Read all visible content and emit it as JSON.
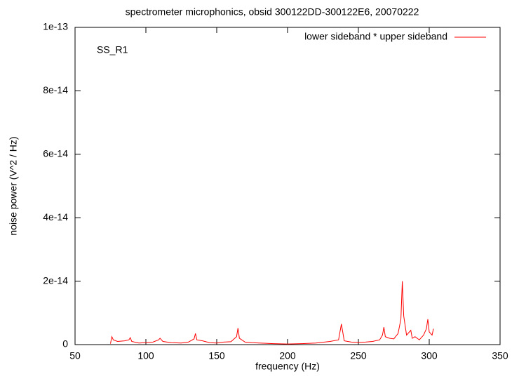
{
  "chart_data": {
    "type": "line",
    "title": "spectrometer microphonics, obsid 300122DD-300122E6, 20070222",
    "x_label": "frequency (Hz)",
    "y_label": "noise power (V^2 / Hz)",
    "annotation": "SS_R1",
    "legend": "top-right",
    "x": [
      75,
      76,
      77,
      80,
      85,
      88,
      89,
      90,
      95,
      100,
      105,
      109,
      110,
      112,
      118,
      125,
      130,
      134,
      135,
      136,
      140,
      145,
      150,
      155,
      160,
      164,
      165,
      166,
      170,
      175,
      180,
      190,
      200,
      210,
      220,
      230,
      236,
      238,
      240,
      245,
      250,
      255,
      260,
      265,
      267,
      268,
      269,
      272,
      275,
      278,
      280,
      281,
      282,
      284,
      287,
      288,
      290,
      293,
      296,
      298,
      299,
      300,
      302,
      303
    ],
    "series": [
      {
        "name": "lower sideband * upper sideband",
        "color": "#ff0000",
        "values": [
          3e-16,
          2.5e-15,
          1.5e-15,
          1e-15,
          1.2e-15,
          1.5e-15,
          2.2e-15,
          1e-15,
          5e-16,
          6e-16,
          8e-16,
          1.5e-15,
          2e-15,
          1e-15,
          6e-16,
          5e-16,
          8e-16,
          1.8e-15,
          3.5e-15,
          1.5e-15,
          1.2e-15,
          6e-16,
          5e-16,
          8e-16,
          9e-16,
          2.5e-15,
          5.2e-15,
          2e-15,
          8e-16,
          6e-16,
          5e-16,
          3e-16,
          2e-16,
          3e-16,
          5e-16,
          1e-15,
          1.5e-15,
          6.5e-15,
          1.2e-15,
          8e-16,
          7e-16,
          8e-16,
          1e-15,
          1.5e-15,
          3e-15,
          5.5e-15,
          2.5e-15,
          2e-15,
          1.8e-15,
          3.5e-15,
          8e-15,
          2e-14,
          9e-15,
          3e-15,
          4.5e-15,
          2e-15,
          2.5e-15,
          1.5e-15,
          3e-15,
          5e-15,
          8e-15,
          4e-15,
          3e-15,
          5e-15
        ]
      }
    ],
    "xlim": [
      50,
      350
    ],
    "xticks": [
      50,
      100,
      150,
      200,
      250,
      300,
      350
    ],
    "ylim": [
      0,
      1e-13
    ],
    "yticks": [
      0,
      2e-14,
      4e-14,
      6e-14,
      8e-14,
      1e-13
    ]
  }
}
